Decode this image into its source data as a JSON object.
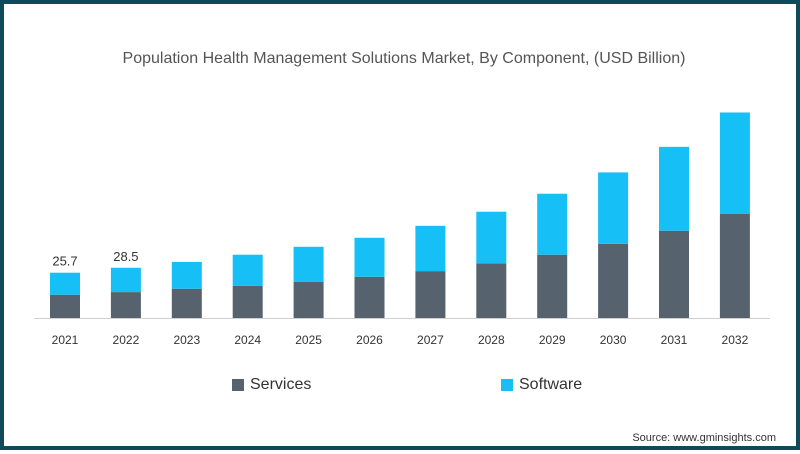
{
  "chart_data": {
    "type": "bar",
    "stacked": true,
    "title": "Population Health Management Solutions Market, By Component, (USD Billion)",
    "xlabel": "",
    "ylabel": "",
    "categories": [
      "2021",
      "2022",
      "2023",
      "2024",
      "2025",
      "2026",
      "2027",
      "2028",
      "2029",
      "2030",
      "2031",
      "2032"
    ],
    "series": [
      {
        "name": "Services",
        "color": "#56626e",
        "values": [
          13.2,
          14.7,
          16.6,
          18.3,
          20.6,
          23.4,
          26.6,
          31.0,
          35.9,
          42.1,
          49.5,
          59.0
        ]
      },
      {
        "name": "Software",
        "color": "#16bff5",
        "values": [
          12.5,
          13.8,
          15.2,
          17.6,
          19.8,
          22.1,
          25.7,
          29.3,
          34.6,
          40.5,
          47.6,
          57.6
        ]
      }
    ],
    "data_labels": [
      {
        "category": "2021",
        "text": "25.7"
      },
      {
        "category": "2022",
        "text": "28.5"
      }
    ],
    "ylim": [
      0,
      120
    ],
    "grid": false,
    "legend_position": "bottom"
  },
  "source": "Source: www.gminsights.com"
}
